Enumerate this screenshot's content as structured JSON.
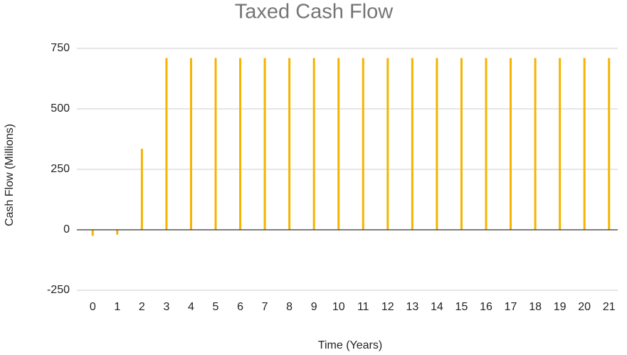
{
  "chart_data": {
    "type": "bar",
    "title": "Taxed Cash Flow",
    "x_label": "Time (Years)",
    "y_label": "Cash Flow (Millions)",
    "categories": [
      "0",
      "1",
      "2",
      "3",
      "4",
      "5",
      "6",
      "7",
      "8",
      "9",
      "10",
      "11",
      "12",
      "13",
      "14",
      "15",
      "16",
      "17",
      "18",
      "19",
      "20",
      "21"
    ],
    "values": [
      -25,
      -20,
      335,
      710,
      710,
      710,
      710,
      710,
      710,
      710,
      710,
      710,
      710,
      710,
      710,
      710,
      710,
      710,
      710,
      710,
      710,
      710
    ],
    "color": "#f4b400",
    "ylim": [
      -250,
      750
    ],
    "yticks": [
      -250,
      0,
      250,
      500,
      750
    ],
    "grid": true
  }
}
